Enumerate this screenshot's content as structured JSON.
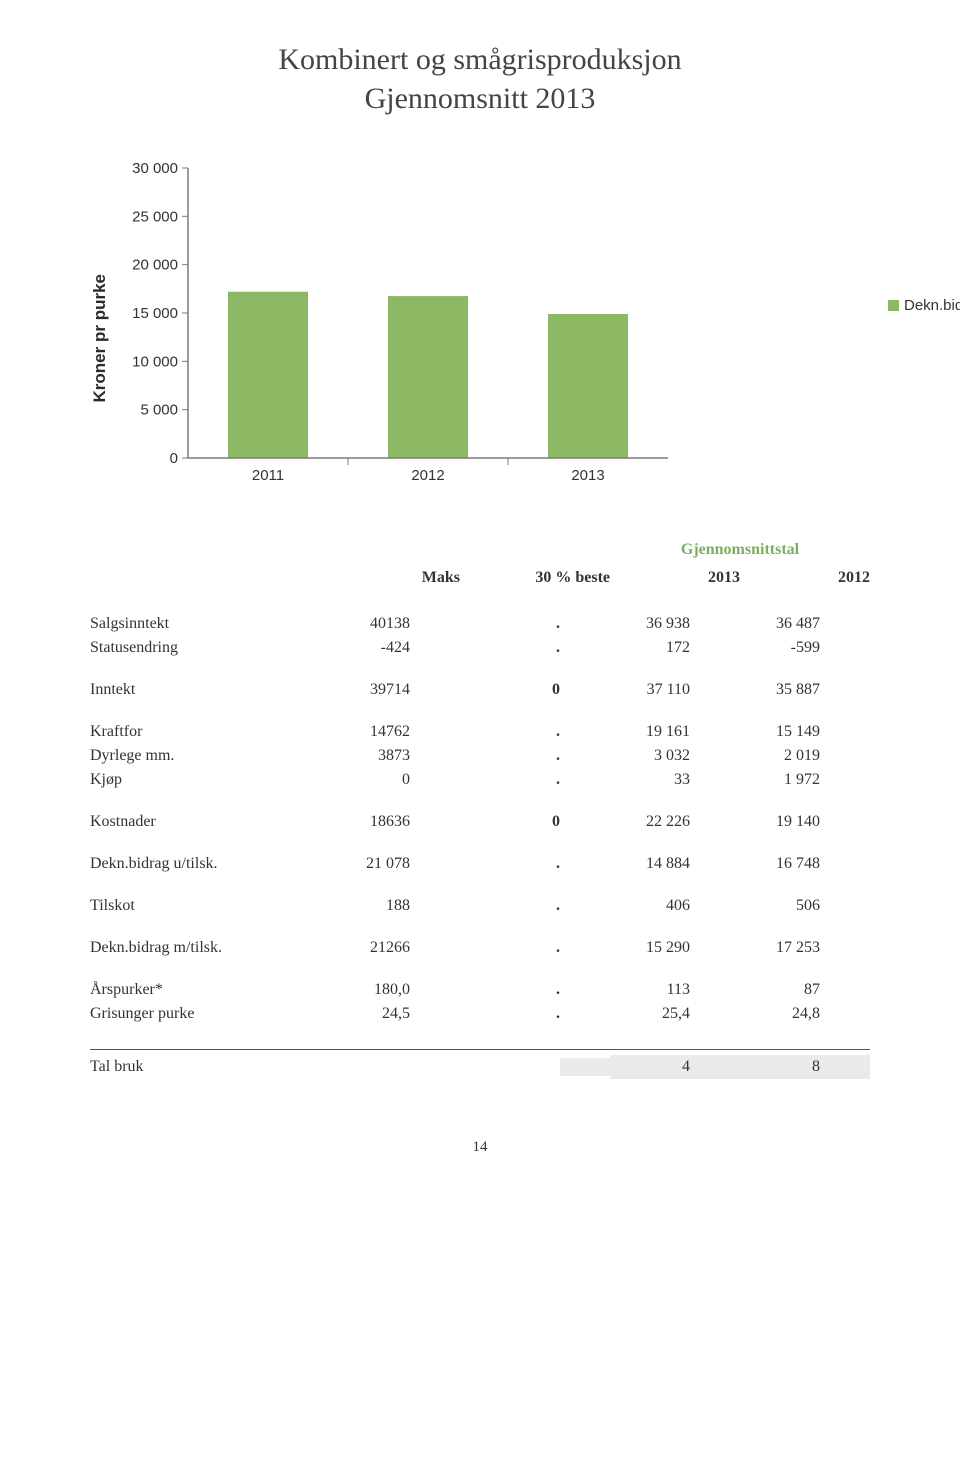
{
  "title_line1": "Kombinert og smågrisproduksjon",
  "title_line2": "Gjennomsnitt 2013",
  "chart": {
    "type": "bar",
    "y_label": "Kroner pr purke",
    "categories": [
      "2011",
      "2012",
      "2013"
    ],
    "values": [
      17200,
      16750,
      14900
    ],
    "bar_color": "#8db863",
    "ylim": [
      0,
      30000
    ],
    "ytick_step": 5000,
    "ytick_labels": [
      "0",
      "5 000",
      "10 000",
      "15 000",
      "20 000",
      "25 000",
      "30 000"
    ],
    "grid_color": "#bfbfbf",
    "axis_color": "#7a7a7a",
    "background_color": "#ffffff",
    "axis_font_family": "Arial, sans-serif",
    "axis_font_size": 15,
    "axis_font_color": "#333333",
    "bar_width_ratio": 0.5
  },
  "legend": {
    "swatch_color": "#8db863",
    "label": "Dekn.bidrag pr. purke"
  },
  "table": {
    "headers": {
      "maks": "Maks",
      "beste": "30 % beste",
      "group": "Gjennomsnittstal",
      "y2013": "2013",
      "y2012": "2012"
    },
    "rows": {
      "salg": {
        "label": "Salgsinntekt",
        "maks": "40138",
        "beste": ".",
        "y2013": "36 938",
        "y2012": "36 487"
      },
      "status": {
        "label": "Statusendring",
        "maks": "-424",
        "beste": ".",
        "y2013": "172",
        "y2012": "-599"
      },
      "innt": {
        "label": "Inntekt",
        "maks": "39714",
        "beste": "0",
        "y2013": "37 110",
        "y2012": "35 887"
      },
      "kraft": {
        "label": "Kraftfor",
        "maks": "14762",
        "beste": ".",
        "y2013": "19 161",
        "y2012": "15 149"
      },
      "dyr": {
        "label": "Dyrlege mm.",
        "maks": "3873",
        "beste": ".",
        "y2013": "3 032",
        "y2012": "2 019"
      },
      "kjop": {
        "label": "Kjøp",
        "maks": "0",
        "beste": ".",
        "y2013": "33",
        "y2012": "1 972"
      },
      "kost": {
        "label": "Kostnader",
        "maks": "18636",
        "beste": "0",
        "y2013": "22 226",
        "y2012": "19 140"
      },
      "dbu": {
        "label": "Dekn.bidrag u/tilsk.",
        "maks": "21 078",
        "beste": ".",
        "y2013": "14 884",
        "y2012": "16 748"
      },
      "tilsk": {
        "label": "Tilskot",
        "maks": "188",
        "beste": ".",
        "y2013": "406",
        "y2012": "506"
      },
      "dbm": {
        "label": "Dekn.bidrag m/tilsk.",
        "maks": "21266",
        "beste": ".",
        "y2013": "15 290",
        "y2012": "17 253"
      },
      "ars": {
        "label": "Årspurker*",
        "maks": "180,0",
        "beste": ".",
        "y2013": "113",
        "y2012": "87"
      },
      "gris": {
        "label": "Grisunger purke",
        "maks": "24,5",
        "beste": ".",
        "y2013": "25,4",
        "y2012": "24,8"
      },
      "tal": {
        "label": "Tal bruk",
        "maks": "",
        "beste": "",
        "y2013": "4",
        "y2012": "8"
      }
    }
  },
  "page_number": "14"
}
